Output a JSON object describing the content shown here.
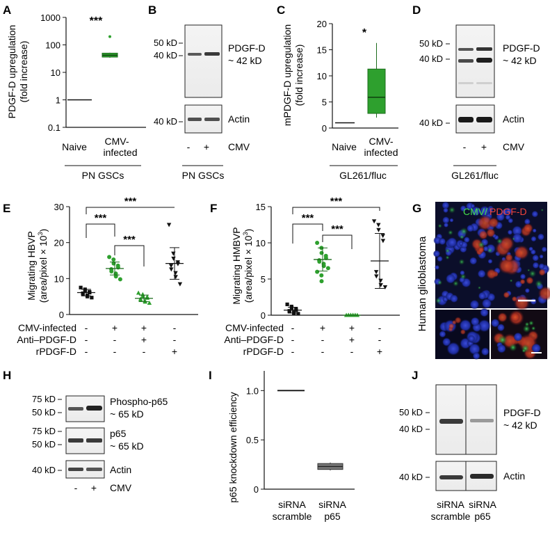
{
  "colors": {
    "green": "#2ea02e",
    "dark_green": "#1c6b1c",
    "black": "#111111",
    "gray": "#777777"
  },
  "panels": {
    "A": {
      "letter": "A",
      "chart_data": {
        "type": "box",
        "ylabel": [
          "PDGF-D upregulation",
          "(fold increase)"
        ],
        "yscale": "log",
        "ylim": [
          0.1,
          1000
        ],
        "yticks": [
          "0.1",
          "1",
          "10",
          "100",
          "1000"
        ],
        "categories": [
          "Naive",
          "CMV-infected"
        ],
        "naive_value": 1,
        "box": {
          "q1": 36,
          "median": 42,
          "q3": 50,
          "whisker_low": 34,
          "whisker_high": 52,
          "outlier": 200
        },
        "significance": "***",
        "group_label": "PN GSCs"
      }
    },
    "B": {
      "letter": "B",
      "markers_top": [
        "50 kD",
        "40 kD"
      ],
      "band_label": [
        "PDGF-D",
        "~ 42 kD"
      ],
      "markers_bottom": [
        "40 kD"
      ],
      "loading_label": "Actin",
      "lane_signs": [
        "-",
        "+"
      ],
      "treatment": "CMV",
      "group_label": "PN GSCs"
    },
    "C": {
      "letter": "C",
      "chart_data": {
        "type": "box",
        "ylabel": [
          "mPDGF-D upregulation",
          "(fold increase)"
        ],
        "ylim": [
          0,
          20
        ],
        "yticks": [
          "0",
          "5",
          "10",
          "15",
          "20"
        ],
        "categories": [
          "Naive",
          "CMV-infected"
        ],
        "category_lines": [
          [
            "Naive"
          ],
          [
            "CMV-",
            "infected"
          ]
        ],
        "naive_value": 1,
        "box": {
          "q1": 2.8,
          "median": 5.9,
          "q3": 11.3,
          "whisker_low": 2.0,
          "whisker_high": 16.3
        },
        "significance": "*",
        "group_label": "GL261/fluc"
      }
    },
    "D": {
      "letter": "D",
      "markers_top": [
        "50 kD",
        "40 kD"
      ],
      "band_label": [
        "PDGF-D",
        "~ 42 kD"
      ],
      "markers_bottom": [
        "40 kD"
      ],
      "loading_label": "Actin",
      "lane_signs": [
        "-",
        "+"
      ],
      "treatment": "CMV",
      "group_label": "GL261/fluc"
    },
    "E": {
      "letter": "E",
      "chart_data": {
        "type": "scatter",
        "ylabel": [
          "Migrating HBVP",
          "(area/pixel × 10",
          "3",
          ")"
        ],
        "ylim": [
          0,
          30
        ],
        "yticks": [
          "0",
          "10",
          "20",
          "30"
        ],
        "groups": [
          {
            "name": "1",
            "marker": "square",
            "color": "#111111",
            "values": [
              7.5,
              7.0,
              6.6,
              6.3,
              6.1,
              5.9,
              5.6,
              5.3,
              5.0,
              4.7
            ],
            "mean": 6.1,
            "sd": 0.9
          },
          {
            "name": "2",
            "marker": "circle",
            "color": "#2ea02e",
            "values": [
              16.0,
              15.3,
              14.2,
              13.6,
              13.1,
              12.6,
              12.0,
              11.4,
              10.6,
              9.8
            ],
            "mean": 12.8,
            "sd": 1.8
          },
          {
            "name": "3",
            "marker": "triangle",
            "color": "#2ea02e",
            "values": [
              6.0,
              5.6,
              5.1,
              4.9,
              4.6,
              4.3,
              4.0,
              3.8,
              3.5,
              3.2
            ],
            "mean": 4.5,
            "sd": 0.9
          },
          {
            "name": "4",
            "marker": "inv-triangle",
            "color": "#111111",
            "values": [
              25.0,
              17.0,
              15.6,
              14.6,
              14.1,
              13.6,
              12.6,
              11.6,
              10.5,
              8.5
            ],
            "mean": 14.2,
            "sd": 4.4
          }
        ],
        "significance": [
          {
            "from": 0,
            "to": 1,
            "label": "***"
          },
          {
            "from": 1,
            "to": 2,
            "label": "***"
          },
          {
            "from": 0,
            "to": 3,
            "label": "***"
          }
        ],
        "conditions": [
          {
            "label": "CMV-infected",
            "signs": [
              "-",
              "+",
              "+",
              "-"
            ]
          },
          {
            "label": "Anti–PDGF-D",
            "signs": [
              "-",
              "-",
              "+",
              "-"
            ]
          },
          {
            "label": "rPDGF-D",
            "signs": [
              "-",
              "-",
              "-",
              "+"
            ]
          }
        ]
      }
    },
    "F": {
      "letter": "F",
      "chart_data": {
        "type": "scatter",
        "ylabel": [
          "Migrating HMBVP",
          "(area/pixel × 10",
          "3",
          ")"
        ],
        "ylim": [
          0,
          15
        ],
        "yticks": [
          "0",
          "5",
          "10",
          "15"
        ],
        "groups": [
          {
            "name": "1",
            "marker": "square",
            "color": "#111111",
            "values": [
              1.5,
              1.2,
              1.0,
              0.9,
              0.7,
              0.6,
              0.5,
              0.4,
              0.3,
              0.2
            ],
            "mean": 0.7,
            "sd": 0.4
          },
          {
            "name": "2",
            "marker": "circle",
            "color": "#2ea02e",
            "values": [
              10.0,
              9.3,
              8.6,
              8.2,
              7.9,
              7.6,
              7.4,
              7.1,
              6.8,
              6.5,
              6.0,
              5.5,
              4.7
            ],
            "mean": 7.7,
            "sd": 1.6
          },
          {
            "name": "3",
            "marker": "triangle",
            "color": "#2ea02e",
            "values": [
              0,
              0,
              0,
              0,
              0,
              0,
              0,
              0,
              0,
              0
            ],
            "mean": 0,
            "sd": 0
          },
          {
            "name": "4",
            "marker": "inv-triangle",
            "color": "#111111",
            "values": [
              13.0,
              12.5,
              11.8,
              11.0,
              10.3,
              6.0,
              5.4,
              4.8,
              4.2,
              3.9
            ],
            "mean": 7.5,
            "sd": 3.8
          }
        ],
        "significance": [
          {
            "from": 0,
            "to": 1,
            "label": "***"
          },
          {
            "from": 1,
            "to": 2,
            "label": "***"
          },
          {
            "from": 0,
            "to": 3,
            "label": "***"
          }
        ],
        "conditions": [
          {
            "label": "CMV-infected",
            "signs": [
              "-",
              "+",
              "+",
              "-"
            ]
          },
          {
            "label": "Anti–PDGF-D",
            "signs": [
              "-",
              "-",
              "+",
              "-"
            ]
          },
          {
            "label": "rPDGF-D",
            "signs": [
              "-",
              "-",
              "-",
              "+"
            ]
          }
        ]
      }
    },
    "G": {
      "letter": "G",
      "stain_a": "CMV/",
      "stain_b": " PDGF-D",
      "side_label": "Human glioblastoma"
    },
    "H": {
      "letter": "H",
      "blots": [
        {
          "markers": [
            "75 kD",
            "50 kD"
          ],
          "label": [
            "Phospho-p65",
            "~ 65 kD"
          ]
        },
        {
          "markers": [
            "75 kD",
            "50 kD"
          ],
          "label": [
            "p65",
            "~ 65 kD"
          ]
        },
        {
          "markers": [
            "40 kD"
          ],
          "label": [
            "Actin"
          ]
        }
      ],
      "lane_signs": [
        "-",
        "+"
      ],
      "treatment": "CMV"
    },
    "I": {
      "letter": "I",
      "chart_data": {
        "type": "box",
        "ylabel": [
          "p65 knockdown efficiency"
        ],
        "ylim": [
          0,
          1.2
        ],
        "yticks": [
          "0",
          "0.5",
          "1.0"
        ],
        "categories": [
          "siRNA scramble",
          "siRNA p65"
        ],
        "category_lines": [
          [
            "siRNA",
            "scramble"
          ],
          [
            "siRNA",
            "p65"
          ]
        ],
        "scramble_value": 1.0,
        "box": {
          "q1": 0.2,
          "median": 0.23,
          "q3": 0.26,
          "whisker_low": 0.19,
          "whisker_high": 0.27
        }
      }
    },
    "J": {
      "letter": "J",
      "markers_top": [
        "50 kD",
        "40 kD"
      ],
      "band_label": [
        "PDGF-D",
        "~ 42 kD"
      ],
      "markers_bottom": [
        "40 kD"
      ],
      "loading_label": "Actin",
      "lane_labels": [
        [
          "siRNA",
          "scramble"
        ],
        [
          "siRNA",
          "p65"
        ]
      ]
    }
  }
}
